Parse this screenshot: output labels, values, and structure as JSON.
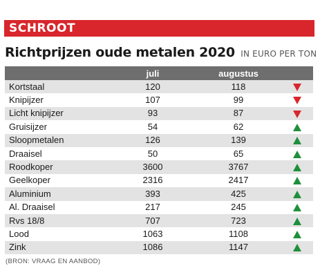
{
  "section": {
    "label": "SCHROOT",
    "color": "#d8262c"
  },
  "heading": {
    "title": "Richtprijzen oude metalen 2020",
    "unit": "IN EURO PER TON"
  },
  "table": {
    "columns": [
      "",
      "juli",
      "augustus",
      ""
    ],
    "rows": [
      {
        "metal": "Kortstaal",
        "juli": "120",
        "augustus": "118",
        "trend": "down"
      },
      {
        "metal": "Knipijzer",
        "juli": "107",
        "augustus": "99",
        "trend": "down"
      },
      {
        "metal": "Licht knipijzer",
        "juli": "93",
        "augustus": "87",
        "trend": "down"
      },
      {
        "metal": "Gruisijzer",
        "juli": "54",
        "augustus": "62",
        "trend": "up"
      },
      {
        "metal": "Sloopmetalen",
        "juli": "126",
        "augustus": "139",
        "trend": "up"
      },
      {
        "metal": "Draaisel",
        "juli": "50",
        "augustus": "65",
        "trend": "up"
      },
      {
        "metal": "Roodkoper",
        "juli": "3600",
        "augustus": "3767",
        "trend": "up"
      },
      {
        "metal": "Geelkoper",
        "juli": "2316",
        "augustus": "2417",
        "trend": "up"
      },
      {
        "metal": "Aluminium",
        "juli": "393",
        "augustus": "425",
        "trend": "up"
      },
      {
        "metal": "Al. Draaisel",
        "juli": "217",
        "augustus": "245",
        "trend": "up"
      },
      {
        "metal": "Rvs 18/8",
        "juli": "707",
        "augustus": "723",
        "trend": "up"
      },
      {
        "metal": "Lood",
        "juli": "1063",
        "augustus": "1108",
        "trend": "up"
      },
      {
        "metal": "Zink",
        "juli": "1086",
        "augustus": "1147",
        "trend": "up"
      }
    ],
    "trend_colors": {
      "up": "#1f8f3a",
      "down": "#d8262c"
    },
    "trend_icons": {
      "up": "triangle-up-icon",
      "down": "triangle-down-icon"
    }
  },
  "source": "(BRON: VRAAG EN AANBOD)"
}
